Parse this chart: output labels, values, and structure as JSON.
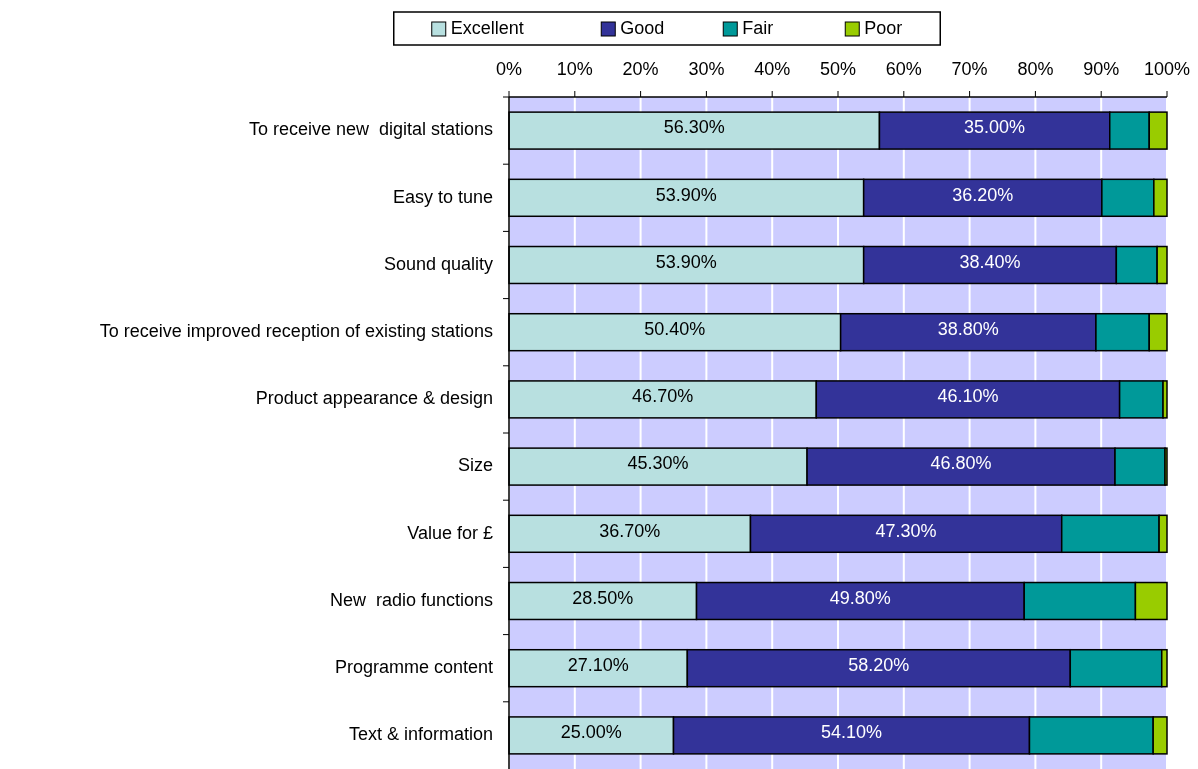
{
  "chart_data": {
    "type": "bar",
    "orientation": "horizontal",
    "stacked": true,
    "categories": [
      "To receive new  digital stations",
      "Easy to tune",
      "Sound quality",
      "To receive improved reception of existing stations",
      "Product appearance & design",
      "Size",
      "Value for £",
      "New  radio functions",
      "Programme content",
      "Text & information"
    ],
    "series": [
      {
        "name": "Excellent",
        "color": "#b8e0e0",
        "values": [
          56.3,
          53.9,
          53.9,
          50.4,
          46.7,
          45.3,
          36.7,
          28.5,
          27.1,
          25.0
        ],
        "value_labels": [
          "56.30%",
          "53.90%",
          "53.90%",
          "50.40%",
          "46.70%",
          "45.30%",
          "36.70%",
          "28.50%",
          "27.10%",
          "25.00%"
        ]
      },
      {
        "name": "Good",
        "color": "#333399",
        "values": [
          35.0,
          36.2,
          38.4,
          38.8,
          46.1,
          46.8,
          47.3,
          49.8,
          58.2,
          54.1
        ],
        "value_labels": [
          "35.00%",
          "36.20%",
          "38.40%",
          "38.80%",
          "46.10%",
          "46.80%",
          "47.30%",
          "49.80%",
          "58.20%",
          "54.10%"
        ]
      },
      {
        "name": "Fair",
        "color": "#009999",
        "values": [
          6.0,
          7.9,
          6.2,
          8.1,
          6.6,
          7.6,
          14.8,
          16.9,
          13.9,
          18.8
        ]
      },
      {
        "name": "Poor",
        "color": "#99cc00",
        "values": [
          2.7,
          2.0,
          1.5,
          2.7,
          0.6,
          0.3,
          1.2,
          4.8,
          0.8,
          2.1
        ]
      }
    ],
    "xlim": [
      0,
      100
    ],
    "xticks": [
      {
        "value": 0,
        "label": "0%"
      },
      {
        "value": 10,
        "label": "10%"
      },
      {
        "value": 20,
        "label": "20%"
      },
      {
        "value": 30,
        "label": "30%"
      },
      {
        "value": 40,
        "label": "40%"
      },
      {
        "value": 50,
        "label": "50%"
      },
      {
        "value": 60,
        "label": "60%"
      },
      {
        "value": 70,
        "label": "70%"
      },
      {
        "value": 80,
        "label": "80%"
      },
      {
        "value": 90,
        "label": "90%"
      },
      {
        "value": 100,
        "label": "100%"
      }
    ],
    "grid": "x",
    "legend": "top"
  }
}
